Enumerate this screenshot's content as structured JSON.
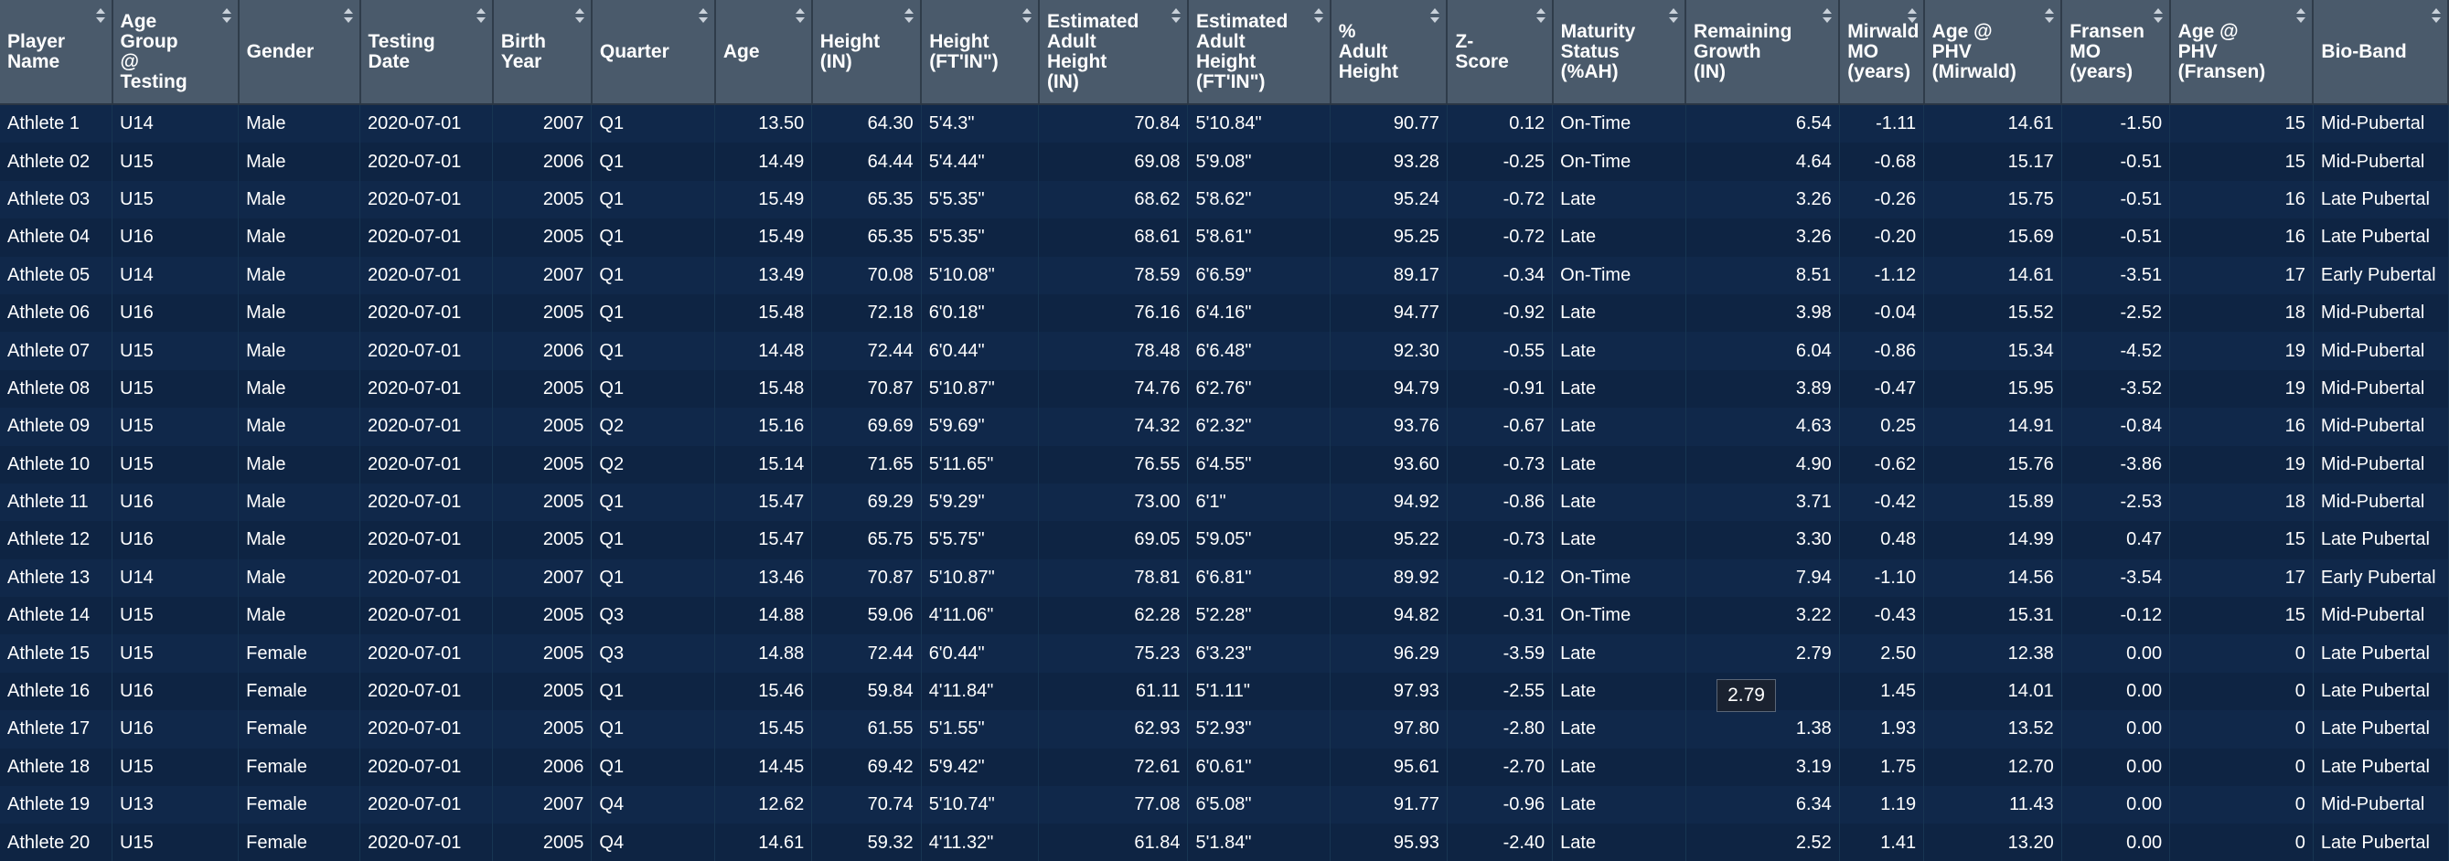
{
  "columns": [
    {
      "label": "Player\nName"
    },
    {
      "label": "Age\nGroup\n@\nTesting"
    },
    {
      "label": "Gender"
    },
    {
      "label": "Testing\nDate"
    },
    {
      "label": "Birth\nYear"
    },
    {
      "label": "Quarter"
    },
    {
      "label": "Age"
    },
    {
      "label": "Height\n(IN)"
    },
    {
      "label": "Height\n(FT'IN\")"
    },
    {
      "label": "Estimated\nAdult\nHeight\n(IN)"
    },
    {
      "label": "Estimated\nAdult\nHeight\n(FT'IN\")"
    },
    {
      "label": "%\nAdult\nHeight"
    },
    {
      "label": "Z-\nScore"
    },
    {
      "label": "Maturity\nStatus\n(%AH)"
    },
    {
      "label": "Remaining\nGrowth\n(IN)"
    },
    {
      "label": "Mirwald\nMO\n(years)"
    },
    {
      "label": "Age @\nPHV\n(Mirwald)"
    },
    {
      "label": "Fransen\nMO\n(years)"
    },
    {
      "label": "Age @\nPHV\n(Fransen)"
    },
    {
      "label": "Bio-Band"
    }
  ],
  "rows": [
    [
      "Athlete 1",
      "U14",
      "Male",
      "2020-07-01",
      "2007",
      "Q1",
      "13.50",
      "64.30",
      "5'4.3\"",
      "70.84",
      "5'10.84\"",
      "90.77",
      "0.12",
      "On-Time",
      "6.54",
      "-1.11",
      "14.61",
      "-1.50",
      "15",
      "Mid-Pubertal"
    ],
    [
      "Athlete 02",
      "U15",
      "Male",
      "2020-07-01",
      "2006",
      "Q1",
      "14.49",
      "64.44",
      "5'4.44\"",
      "69.08",
      "5'9.08\"",
      "93.28",
      "-0.25",
      "On-Time",
      "4.64",
      "-0.68",
      "15.17",
      "-0.51",
      "15",
      "Mid-Pubertal"
    ],
    [
      "Athlete 03",
      "U15",
      "Male",
      "2020-07-01",
      "2005",
      "Q1",
      "15.49",
      "65.35",
      "5'5.35\"",
      "68.62",
      "5'8.62\"",
      "95.24",
      "-0.72",
      "Late",
      "3.26",
      "-0.26",
      "15.75",
      "-0.51",
      "16",
      "Late Pubertal"
    ],
    [
      "Athlete 04",
      "U16",
      "Male",
      "2020-07-01",
      "2005",
      "Q1",
      "15.49",
      "65.35",
      "5'5.35\"",
      "68.61",
      "5'8.61\"",
      "95.25",
      "-0.72",
      "Late",
      "3.26",
      "-0.20",
      "15.69",
      "-0.51",
      "16",
      "Late Pubertal"
    ],
    [
      "Athlete 05",
      "U14",
      "Male",
      "2020-07-01",
      "2007",
      "Q1",
      "13.49",
      "70.08",
      "5'10.08\"",
      "78.59",
      "6'6.59\"",
      "89.17",
      "-0.34",
      "On-Time",
      "8.51",
      "-1.12",
      "14.61",
      "-3.51",
      "17",
      "Early Pubertal"
    ],
    [
      "Athlete 06",
      "U16",
      "Male",
      "2020-07-01",
      "2005",
      "Q1",
      "15.48",
      "72.18",
      "6'0.18\"",
      "76.16",
      "6'4.16\"",
      "94.77",
      "-0.92",
      "Late",
      "3.98",
      "-0.04",
      "15.52",
      "-2.52",
      "18",
      "Mid-Pubertal"
    ],
    [
      "Athlete 07",
      "U15",
      "Male",
      "2020-07-01",
      "2006",
      "Q1",
      "14.48",
      "72.44",
      "6'0.44\"",
      "78.48",
      "6'6.48\"",
      "92.30",
      "-0.55",
      "Late",
      "6.04",
      "-0.86",
      "15.34",
      "-4.52",
      "19",
      "Mid-Pubertal"
    ],
    [
      "Athlete 08",
      "U15",
      "Male",
      "2020-07-01",
      "2005",
      "Q1",
      "15.48",
      "70.87",
      "5'10.87\"",
      "74.76",
      "6'2.76\"",
      "94.79",
      "-0.91",
      "Late",
      "3.89",
      "-0.47",
      "15.95",
      "-3.52",
      "19",
      "Mid-Pubertal"
    ],
    [
      "Athlete 09",
      "U15",
      "Male",
      "2020-07-01",
      "2005",
      "Q2",
      "15.16",
      "69.69",
      "5'9.69\"",
      "74.32",
      "6'2.32\"",
      "93.76",
      "-0.67",
      "Late",
      "4.63",
      "0.25",
      "14.91",
      "-0.84",
      "16",
      "Mid-Pubertal"
    ],
    [
      "Athlete 10",
      "U15",
      "Male",
      "2020-07-01",
      "2005",
      "Q2",
      "15.14",
      "71.65",
      "5'11.65\"",
      "76.55",
      "6'4.55\"",
      "93.60",
      "-0.73",
      "Late",
      "4.90",
      "-0.62",
      "15.76",
      "-3.86",
      "19",
      "Mid-Pubertal"
    ],
    [
      "Athlete 11",
      "U16",
      "Male",
      "2020-07-01",
      "2005",
      "Q1",
      "15.47",
      "69.29",
      "5'9.29\"",
      "73.00",
      "6'1\"",
      "94.92",
      "-0.86",
      "Late",
      "3.71",
      "-0.42",
      "15.89",
      "-2.53",
      "18",
      "Mid-Pubertal"
    ],
    [
      "Athlete 12",
      "U16",
      "Male",
      "2020-07-01",
      "2005",
      "Q1",
      "15.47",
      "65.75",
      "5'5.75\"",
      "69.05",
      "5'9.05\"",
      "95.22",
      "-0.73",
      "Late",
      "3.30",
      "0.48",
      "14.99",
      "0.47",
      "15",
      "Late Pubertal"
    ],
    [
      "Athlete 13",
      "U14",
      "Male",
      "2020-07-01",
      "2007",
      "Q1",
      "13.46",
      "70.87",
      "5'10.87\"",
      "78.81",
      "6'6.81\"",
      "89.92",
      "-0.12",
      "On-Time",
      "7.94",
      "-1.10",
      "14.56",
      "-3.54",
      "17",
      "Early Pubertal"
    ],
    [
      "Athlete 14",
      "U15",
      "Male",
      "2020-07-01",
      "2005",
      "Q3",
      "14.88",
      "59.06",
      "4'11.06\"",
      "62.28",
      "5'2.28\"",
      "94.82",
      "-0.31",
      "On-Time",
      "3.22",
      "-0.43",
      "15.31",
      "-0.12",
      "15",
      "Mid-Pubertal"
    ],
    [
      "Athlete 15",
      "U15",
      "Female",
      "2020-07-01",
      "2005",
      "Q3",
      "14.88",
      "72.44",
      "6'0.44\"",
      "75.23",
      "6'3.23\"",
      "96.29",
      "-3.59",
      "Late",
      "2.79",
      "2.50",
      "12.38",
      "0.00",
      "0",
      "Late Pubertal"
    ],
    [
      "Athlete 16",
      "U16",
      "Female",
      "2020-07-01",
      "2005",
      "Q1",
      "15.46",
      "59.84",
      "4'11.84\"",
      "61.11",
      "5'1.11\"",
      "97.93",
      "-2.55",
      "Late",
      "",
      "1.45",
      "14.01",
      "0.00",
      "0",
      "Late Pubertal"
    ],
    [
      "Athlete 17",
      "U16",
      "Female",
      "2020-07-01",
      "2005",
      "Q1",
      "15.45",
      "61.55",
      "5'1.55\"",
      "62.93",
      "5'2.93\"",
      "97.80",
      "-2.80",
      "Late",
      "1.38",
      "1.93",
      "13.52",
      "0.00",
      "0",
      "Late Pubertal"
    ],
    [
      "Athlete 18",
      "U15",
      "Female",
      "2020-07-01",
      "2006",
      "Q1",
      "14.45",
      "69.42",
      "5'9.42\"",
      "72.61",
      "6'0.61\"",
      "95.61",
      "-2.70",
      "Late",
      "3.19",
      "1.75",
      "12.70",
      "0.00",
      "0",
      "Late Pubertal"
    ],
    [
      "Athlete 19",
      "U13",
      "Female",
      "2020-07-01",
      "2007",
      "Q4",
      "12.62",
      "70.74",
      "5'10.74\"",
      "77.08",
      "6'5.08\"",
      "91.77",
      "-0.96",
      "Late",
      "6.34",
      "1.19",
      "11.43",
      "0.00",
      "0",
      "Mid-Pubertal"
    ],
    [
      "Athlete 20",
      "U15",
      "Female",
      "2020-07-01",
      "2005",
      "Q4",
      "14.61",
      "59.32",
      "4'11.32\"",
      "61.84",
      "5'1.84\"",
      "95.93",
      "-2.40",
      "Late",
      "2.52",
      "1.41",
      "13.20",
      "0.00",
      "0",
      "Late Pubertal"
    ]
  ],
  "tooltip": {
    "text": "2.79"
  },
  "colors": {
    "header_bg": "#4a5a6b",
    "row_bg": "#10284a",
    "text": "#ffffff"
  }
}
